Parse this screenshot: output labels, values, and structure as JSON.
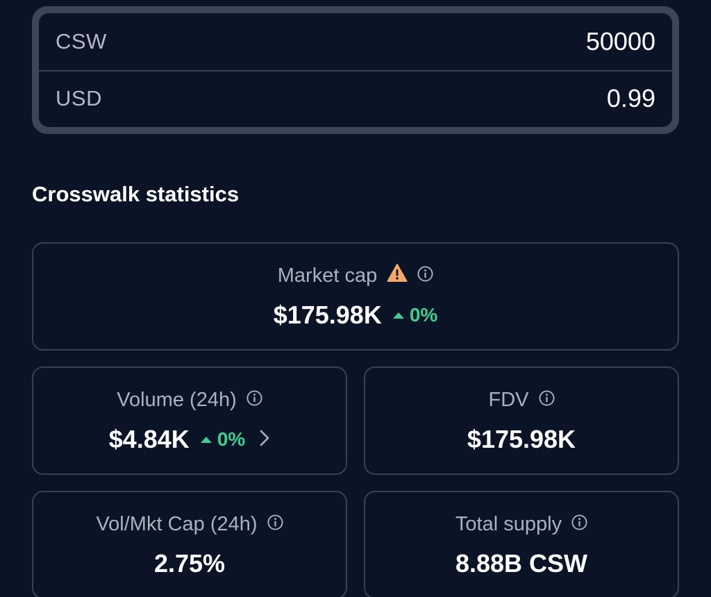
{
  "converter": {
    "rows": [
      {
        "label": "CSW",
        "value": "50000"
      },
      {
        "label": "USD",
        "value": "0.99"
      }
    ]
  },
  "statistics": {
    "title": "Crosswalk statistics",
    "market_cap": {
      "label": "Market cap",
      "value": "$175.98K",
      "change": "0%",
      "warning_icon": "warning-icon",
      "info_icon": "info-icon"
    },
    "volume": {
      "label": "Volume (24h)",
      "value": "$4.84K",
      "change": "0%",
      "info_icon": "info-icon",
      "chevron_icon": "chevron-right-icon"
    },
    "fdv": {
      "label": "FDV",
      "value": "$175.98K",
      "info_icon": "info-icon"
    },
    "vol_mkt_cap": {
      "label": "Vol/Mkt Cap (24h)",
      "value": "2.75%",
      "info_icon": "info-icon"
    },
    "total_supply": {
      "label": "Total supply",
      "value": "8.88B CSW",
      "info_icon": "info-icon"
    }
  },
  "colors": {
    "background": "#0b1426",
    "border": "#364255",
    "positive": "#3fcf8e",
    "warning": "#f4a66a"
  }
}
